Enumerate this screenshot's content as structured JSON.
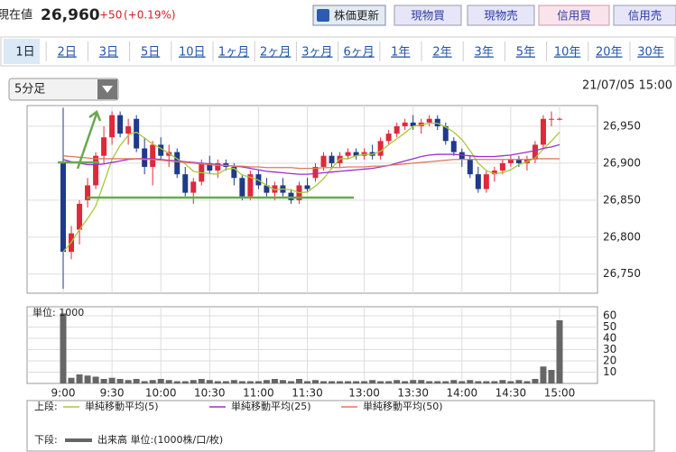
{
  "header": {
    "label": "現在値",
    "price": "26,960",
    "change": "+50",
    "change_pct": "(+0.19%)"
  },
  "buttons": [
    "株価更新",
    "現物買",
    "現物売",
    "信用買",
    "信用売"
  ],
  "tabs": [
    "1日",
    "2日",
    "3日",
    "5日",
    "10日",
    "1ヶ月",
    "2ヶ月",
    "3ヶ月",
    "6ヶ月",
    "1年",
    "2年",
    "3年",
    "5年",
    "10年",
    "20年",
    "30年"
  ],
  "interval": "5分足",
  "timestamp": "21/07/05 15:00",
  "chart_data": [
    {
      "type": "candlestick",
      "categories": [
        "9:00",
        null,
        null,
        null,
        null,
        null,
        "9:30",
        null,
        null,
        null,
        null,
        null,
        "10:00",
        null,
        null,
        null,
        null,
        null,
        "10:30",
        null,
        null,
        null,
        null,
        null,
        "11:00",
        null,
        null,
        null,
        null,
        null,
        "11:30",
        null,
        null,
        null,
        null,
        null,
        null,
        "13:00",
        null,
        null,
        null,
        null,
        null,
        "13:30",
        null,
        null,
        null,
        null,
        null,
        "14:00",
        null,
        null,
        null,
        null,
        null,
        "14:30",
        null,
        null,
        null,
        null,
        null,
        "15:00"
      ],
      "open": [
        26900,
        26780,
        26810,
        26850,
        26870,
        26910,
        26935,
        26965,
        26940,
        26960,
        26920,
        26895,
        26925,
        26910,
        26915,
        26885,
        26860,
        26875,
        26900,
        26890,
        26900,
        26895,
        26880,
        26855,
        26885,
        26870,
        26860,
        26870,
        26860,
        26850,
        26870,
        26880,
        26895,
        26910,
        26900,
        26910,
        26915,
        26910,
        26915,
        26910,
        26930,
        26940,
        26950,
        26955,
        26950,
        26955,
        26960,
        26950,
        26930,
        26915,
        26905,
        26885,
        26865,
        26885,
        26890,
        26900,
        26905,
        26900,
        26905,
        26925,
        26960,
        26960
      ],
      "high": [
        26975,
        26815,
        26850,
        26880,
        26915,
        26950,
        26970,
        26970,
        26960,
        26965,
        26935,
        26930,
        26935,
        26925,
        26920,
        26895,
        26880,
        26905,
        26910,
        26905,
        26905,
        26900,
        26885,
        26890,
        26890,
        26880,
        26875,
        26880,
        26865,
        26875,
        26880,
        26900,
        26915,
        26915,
        26915,
        26920,
        26920,
        26920,
        26925,
        26935,
        26945,
        26955,
        26960,
        26965,
        26960,
        26965,
        26965,
        26955,
        26935,
        26920,
        26910,
        26895,
        26890,
        26895,
        26905,
        26910,
        26910,
        26910,
        26930,
        26965,
        26970,
        26962
      ],
      "low": [
        26730,
        26770,
        26790,
        26840,
        26865,
        26900,
        26925,
        26935,
        26925,
        26915,
        26885,
        26870,
        26905,
        26895,
        26880,
        26855,
        26845,
        26870,
        26885,
        26880,
        26890,
        26870,
        26850,
        26850,
        26865,
        26855,
        26850,
        26855,
        26845,
        26845,
        26860,
        26875,
        26890,
        26895,
        26895,
        26905,
        26905,
        26905,
        26905,
        26905,
        26925,
        26935,
        26945,
        26945,
        26940,
        26950,
        26945,
        26925,
        26910,
        26895,
        26880,
        26860,
        26860,
        26875,
        26885,
        26895,
        26895,
        26890,
        26900,
        26920,
        26950,
        26958
      ],
      "close": [
        26780,
        26805,
        26845,
        26870,
        26910,
        26935,
        26965,
        26940,
        26950,
        26920,
        26895,
        26925,
        26910,
        26915,
        26885,
        26860,
        26875,
        26900,
        26890,
        26900,
        26895,
        26880,
        26855,
        26885,
        26870,
        26860,
        26870,
        26860,
        26850,
        26870,
        26865,
        26895,
        26910,
        26900,
        26910,
        26915,
        26910,
        26915,
        26910,
        26930,
        26940,
        26950,
        26955,
        26950,
        26955,
        26960,
        26950,
        26930,
        26915,
        26905,
        26885,
        26865,
        26885,
        26890,
        26900,
        26905,
        26900,
        26905,
        26925,
        26960,
        26960,
        26960
      ],
      "up_color": "#e0283c",
      "down_color": "#1e3a8a",
      "series": [
        {
          "name": "単純移動平均(5)",
          "color": "#a8c83c",
          "values": [
            26780,
            26793,
            26810,
            26825,
            26842,
            26873,
            26905,
            26924,
            26938,
            26942,
            26934,
            26926,
            26920,
            26913,
            26906,
            26899,
            26889,
            26887,
            26886,
            26885,
            26892,
            26893,
            26884,
            26881,
            26877,
            26870,
            26864,
            26865,
            26864,
            26860,
            26861,
            26869,
            26879,
            26893,
            26906,
            26906,
            26910,
            26912,
            26912,
            26916,
            26925,
            26933,
            26941,
            26950,
            26952,
            26954,
            26954,
            26949,
            26942,
            26932,
            26917,
            26900,
            26890,
            26886,
            26887,
            26891,
            26898,
            26902,
            26907,
            26919,
            26930,
            26942
          ]
        },
        {
          "name": "単純移動平均(25)",
          "color": "#9a30d0",
          "values": [
            26905,
            26902,
            26900,
            26898,
            26898,
            26899,
            26901,
            26903,
            26905,
            26906,
            26906,
            26906,
            26905,
            26904,
            26903,
            26902,
            26901,
            26900,
            26899,
            26898,
            26897,
            26896,
            26895,
            26893,
            26891,
            26889,
            26888,
            26887,
            26886,
            26885,
            26885,
            26886,
            26887,
            26888,
            26889,
            26890,
            26891,
            26892,
            26893,
            26895,
            26897,
            26900,
            26903,
            26906,
            26909,
            26911,
            26912,
            26912,
            26912,
            26911,
            26910,
            26909,
            26909,
            26909,
            26910,
            26911,
            26913,
            26915,
            26917,
            26920,
            26922,
            26925
          ]
        },
        {
          "name": "単純移動平均(50)",
          "color": "#e07860",
          "values": [
            26910,
            26909,
            26908,
            26907,
            26906,
            26906,
            26906,
            26906,
            26906,
            26906,
            26905,
            26905,
            26904,
            26903,
            26902,
            26901,
            26900,
            26899,
            26898,
            26897,
            26897,
            26896,
            26896,
            26895,
            26895,
            26894,
            26894,
            26894,
            26894,
            26893,
            26893,
            26893,
            26894,
            26894,
            26894,
            26895,
            26895,
            26895,
            26896,
            26896,
            26897,
            26898,
            26899,
            26900,
            26901,
            26902,
            26903,
            26904,
            26905,
            26905,
            26905,
            26905,
            26905,
            26905,
            26905,
            26905,
            26905,
            26905,
            26906,
            26906,
            26906,
            26906
          ]
        }
      ],
      "ylim": [
        26724,
        26978
      ],
      "yticks": [
        {
          "value": 26750,
          "label": "26,750"
        },
        {
          "value": 26800,
          "label": "26,800"
        },
        {
          "value": 26850,
          "label": "26,850"
        },
        {
          "value": 26900,
          "label": "26,900"
        },
        {
          "value": 26950,
          "label": "26,950"
        }
      ],
      "grid": true
    },
    {
      "type": "bar",
      "annotation": "単位: 1000",
      "color": "#666666",
      "values": [
        62,
        5,
        8,
        7,
        6,
        4,
        5,
        4,
        3,
        4,
        2,
        3,
        4,
        3,
        2,
        2,
        3,
        4,
        3,
        2,
        2,
        3,
        2,
        2,
        2,
        3,
        4,
        3,
        2,
        4,
        2,
        3,
        2,
        2,
        2,
        2,
        2,
        2,
        3,
        2,
        2,
        3,
        2,
        3,
        3,
        2,
        2,
        2,
        3,
        2,
        3,
        2,
        2,
        2,
        3,
        2,
        3,
        2,
        4,
        15,
        12,
        56
      ],
      "ylim": [
        0,
        68
      ],
      "yticks": [
        10,
        20,
        30,
        40,
        50,
        60
      ],
      "grid": true
    }
  ],
  "legend": {
    "upper": "上段:",
    "lower": "下段:",
    "lower_item": "出来高 単位:(1000株/口/枚)"
  }
}
